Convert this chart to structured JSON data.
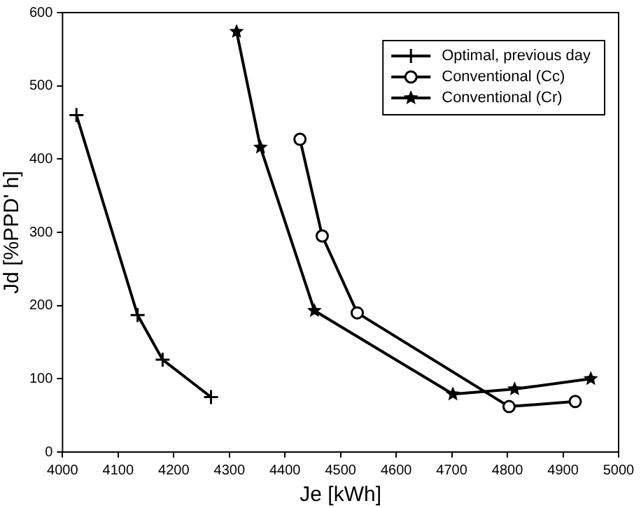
{
  "chart_data": {
    "type": "line",
    "xlabel": "Je [kWh]",
    "ylabel": "Jd [%PPD' h]",
    "xlim": [
      4000,
      5000
    ],
    "xticks": [
      4000,
      4100,
      4200,
      4300,
      4400,
      4500,
      4600,
      4700,
      4800,
      4900,
      5000
    ],
    "ylim": [
      0,
      600
    ],
    "yticks": [
      0,
      100,
      200,
      300,
      400,
      500,
      600
    ],
    "grid": false,
    "legend": "top right",
    "line_style": "solid",
    "series": [
      {
        "name": "Optimal, previous day",
        "color": "#000000",
        "marker": "cross",
        "x": [
          4025,
          4135,
          4180,
          4267
        ],
        "values": [
          460,
          187,
          126,
          75
        ]
      },
      {
        "name": "Conventional (Cc)",
        "color": "#000000",
        "marker": "circle",
        "x": [
          4427,
          4467,
          4530,
          4803,
          4922
        ],
        "values": [
          427,
          295,
          190,
          62,
          69
        ]
      },
      {
        "name": "Conventional (Cr)",
        "color": "#000000",
        "marker": "star",
        "x": [
          4313,
          4356,
          4453,
          4702,
          4813,
          4950
        ],
        "values": [
          574,
          416,
          193,
          79,
          86,
          100
        ]
      }
    ]
  }
}
